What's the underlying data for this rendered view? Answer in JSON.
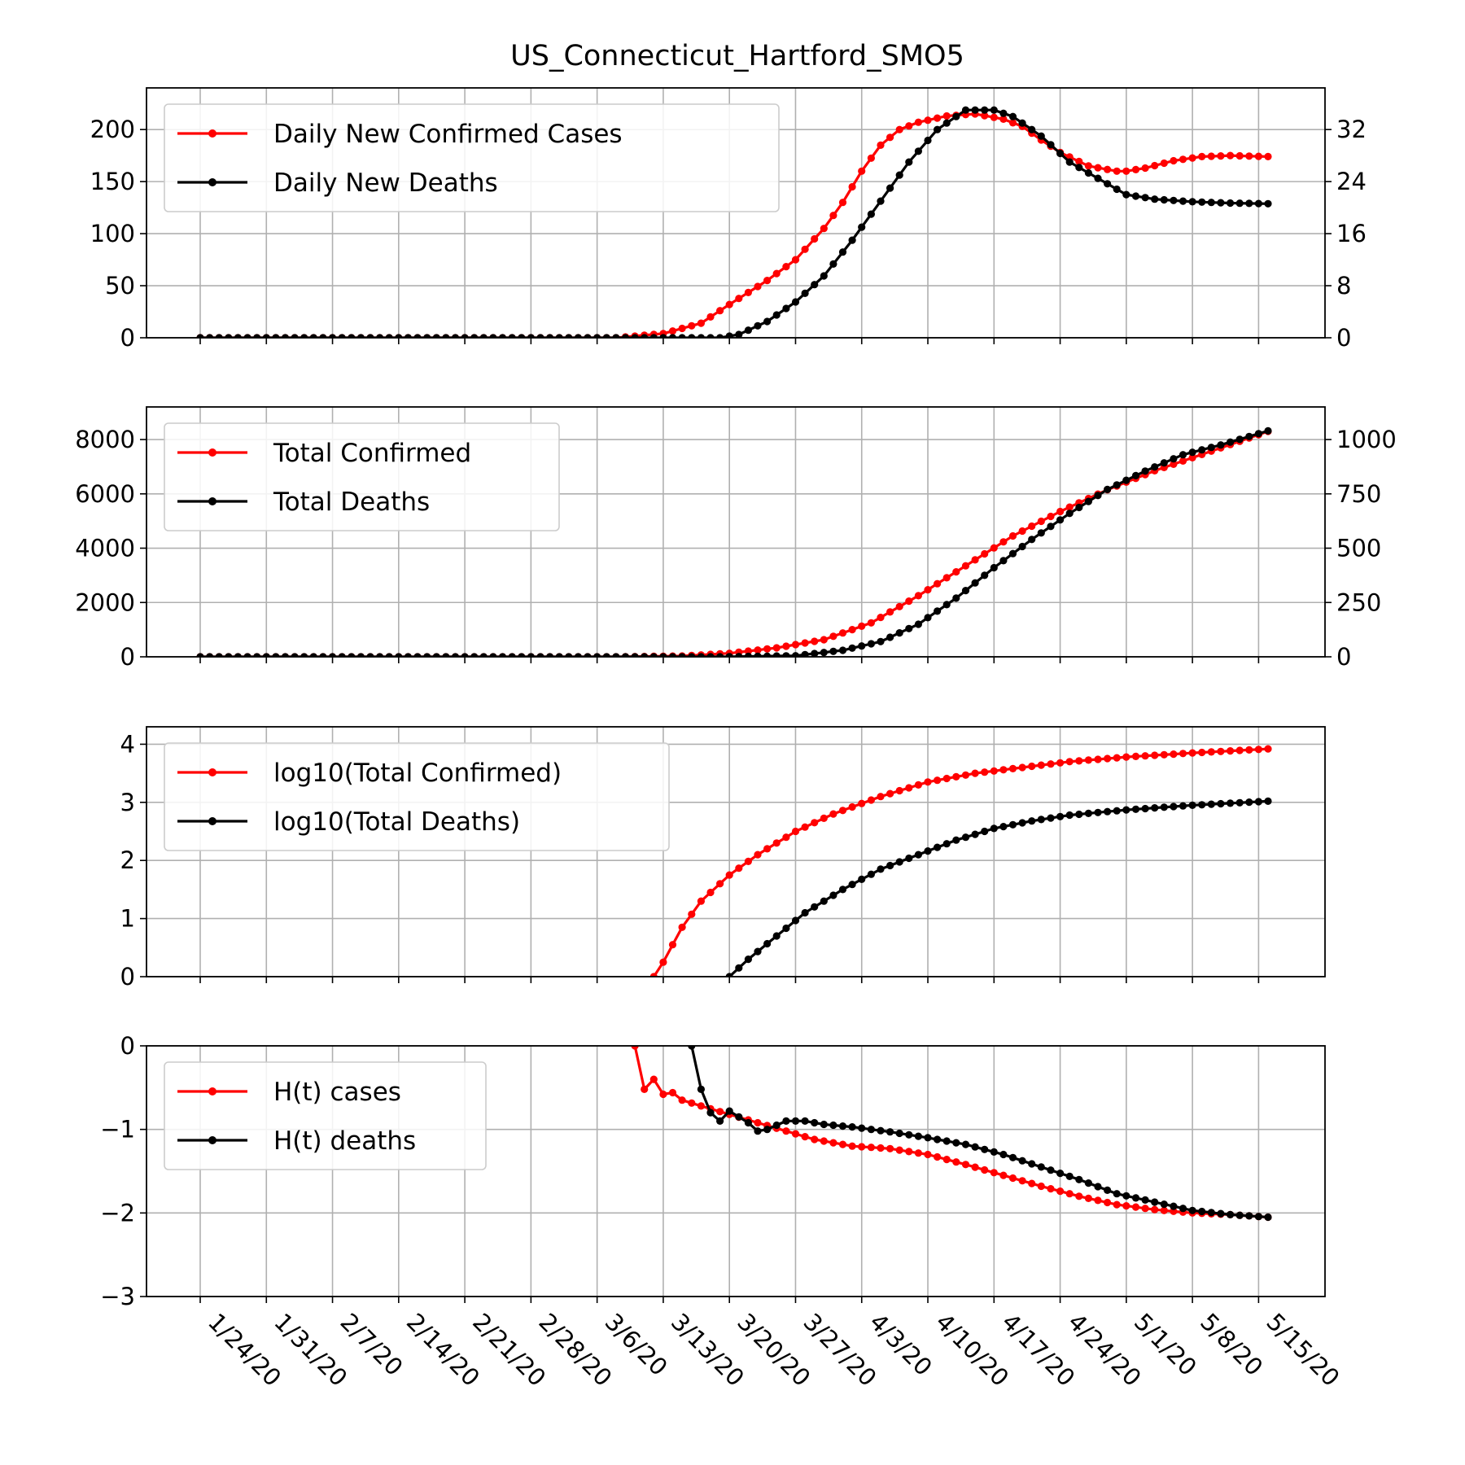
{
  "title": "US_Connecticut_Hartford_SMO5",
  "colors": {
    "cases": "#ff0000",
    "deaths": "#000000",
    "grid": "#b0b0b0"
  },
  "x_tick_labels": [
    "1/24/20",
    "1/31/20",
    "2/7/20",
    "2/14/20",
    "2/21/20",
    "2/28/20",
    "3/6/20",
    "3/13/20",
    "3/20/20",
    "3/27/20",
    "4/3/20",
    "4/10/20",
    "4/17/20",
    "4/24/20",
    "5/1/20",
    "5/8/20",
    "5/15/20"
  ],
  "chart_data": [
    {
      "type": "line",
      "x_start": "1/24/20",
      "x_end": "5/16/20",
      "legend": [
        "Daily New Confirmed Cases",
        "Daily New Deaths"
      ],
      "legend_loc": "upper left",
      "grid": true,
      "left_ticks": [
        "0",
        "50",
        "100",
        "150",
        "200"
      ],
      "right_ticks": [
        "0",
        "8",
        "16",
        "24",
        "32"
      ],
      "ylim_left": [
        0,
        240
      ],
      "ylim_right": [
        0,
        38.4
      ],
      "series": [
        {
          "name": "Daily New Confirmed Cases",
          "axis": "left",
          "x": [
            "3/8/20",
            "3/13/20",
            "3/17/20",
            "3/20/20",
            "3/24/20",
            "3/27/20",
            "3/30/20",
            "4/1/20",
            "4/3/20",
            "4/5/20",
            "4/7/20",
            "4/9/20",
            "4/12/20",
            "4/15/20",
            "4/18/20",
            "4/20/20",
            "4/22/20",
            "4/24/20",
            "4/27/20",
            "4/30/20",
            "5/1/20",
            "5/3/20",
            "5/6/20",
            "5/9/20",
            "5/12/20",
            "5/16/20"
          ],
          "values": [
            0,
            4,
            14,
            32,
            55,
            75,
            105,
            130,
            160,
            185,
            200,
            207,
            213,
            215,
            210,
            203,
            190,
            178,
            165,
            160,
            160,
            163,
            170,
            174,
            175,
            174
          ]
        },
        {
          "name": "Daily New Deaths",
          "axis": "right",
          "x": [
            "3/19/20",
            "3/21/20",
            "3/24/20",
            "3/27/20",
            "3/30/20",
            "4/2/20",
            "4/5/20",
            "4/8/20",
            "4/11/20",
            "4/14/20",
            "4/17/20",
            "4/19/20",
            "4/22/20",
            "4/25/20",
            "4/28/20",
            "5/1/20",
            "5/4/20",
            "5/8/20",
            "5/12/20",
            "5/16/20"
          ],
          "values": [
            0,
            0.5,
            2.5,
            5.5,
            9.5,
            15,
            21,
            27,
            32,
            35,
            35,
            34,
            31,
            27,
            24.5,
            22,
            21.3,
            20.9,
            20.7,
            20.6
          ]
        }
      ]
    },
    {
      "type": "line",
      "x_start": "1/24/20",
      "x_end": "5/16/20",
      "legend": [
        "Total Confirmed",
        "Total Deaths"
      ],
      "legend_loc": "upper left",
      "grid": true,
      "left_ticks": [
        "0",
        "2000",
        "4000",
        "6000",
        "8000"
      ],
      "right_ticks": [
        "0",
        "250",
        "500",
        "750",
        "1000"
      ],
      "ylim_left": [
        0,
        9200
      ],
      "ylim_right": [
        0,
        1150
      ],
      "series": [
        {
          "name": "Total Confirmed",
          "axis": "left",
          "x": [
            "3/8/20",
            "3/15/20",
            "3/20/20",
            "3/25/20",
            "3/30/20",
            "4/4/20",
            "4/9/20",
            "4/14/20",
            "4/19/20",
            "4/24/20",
            "4/29/20",
            "5/4/20",
            "5/9/20",
            "5/16/20"
          ],
          "values": [
            0,
            30,
            130,
            330,
            630,
            1250,
            2250,
            3350,
            4450,
            5350,
            6150,
            6850,
            7450,
            8300
          ]
        },
        {
          "name": "Total Deaths",
          "axis": "right",
          "x": [
            "3/19/20",
            "3/27/20",
            "4/1/20",
            "4/5/20",
            "4/9/20",
            "4/13/20",
            "4/17/20",
            "4/21/20",
            "4/25/20",
            "4/29/20",
            "5/3/20",
            "5/7/20",
            "5/11/20",
            "5/16/20"
          ],
          "values": [
            0,
            5,
            30,
            70,
            150,
            270,
            410,
            540,
            660,
            770,
            855,
            930,
            975,
            1040
          ]
        }
      ]
    },
    {
      "type": "line",
      "x_start": "1/24/20",
      "x_end": "5/16/20",
      "legend": [
        "log10(Total Confirmed)",
        "log10(Total Deaths)"
      ],
      "legend_loc": "upper left",
      "grid": true,
      "left_ticks": [
        "0",
        "1",
        "2",
        "3",
        "4"
      ],
      "ylim_left": [
        0,
        4.3
      ],
      "series": [
        {
          "name": "log10(Total Confirmed)",
          "x": [
            "3/12/20",
            "3/13/20",
            "3/15/20",
            "3/17/20",
            "3/20/20",
            "3/23/20",
            "3/27/20",
            "3/31/20",
            "4/5/20",
            "4/10/20",
            "4/15/20",
            "4/20/20",
            "4/25/20",
            "5/1/20",
            "5/8/20",
            "5/16/20"
          ],
          "values": [
            0,
            0.25,
            0.85,
            1.3,
            1.75,
            2.1,
            2.5,
            2.8,
            3.1,
            3.35,
            3.5,
            3.6,
            3.7,
            3.78,
            3.85,
            3.92
          ]
        },
        {
          "name": "log10(Total Deaths)",
          "x": [
            "3/20/20",
            "3/22/20",
            "3/25/20",
            "3/28/20",
            "4/1/20",
            "4/5/20",
            "4/9/20",
            "4/13/20",
            "4/17/20",
            "4/21/20",
            "4/25/20",
            "5/1/20",
            "5/8/20",
            "5/16/20"
          ],
          "values": [
            0,
            0.3,
            0.7,
            1.1,
            1.5,
            1.85,
            2.1,
            2.35,
            2.55,
            2.68,
            2.78,
            2.87,
            2.95,
            3.02
          ]
        }
      ]
    },
    {
      "type": "line",
      "x_start": "1/24/20",
      "x_end": "5/16/20",
      "legend": [
        "H(t) cases",
        "H(t) deaths"
      ],
      "legend_loc": "upper left",
      "grid": true,
      "left_ticks": [
        "−3",
        "−2",
        "−1",
        "0"
      ],
      "ylim_left": [
        -3,
        0
      ],
      "series": [
        {
          "name": "H(t) cases",
          "x": [
            "3/10/20",
            "3/11/20",
            "3/12/20",
            "3/13/20",
            "3/14/20",
            "3/15/20",
            "3/17/20",
            "3/20/20",
            "3/23/20",
            "3/26/20",
            "3/29/20",
            "4/2/20",
            "4/6/20",
            "4/10/20",
            "4/14/20",
            "4/18/20",
            "4/22/20",
            "4/26/20",
            "4/30/20",
            "5/4/20",
            "5/8/20",
            "5/12/20",
            "5/16/20"
          ],
          "values": [
            0,
            -0.52,
            -0.4,
            -0.58,
            -0.56,
            -0.65,
            -0.72,
            -0.82,
            -0.92,
            -1.02,
            -1.12,
            -1.2,
            -1.23,
            -1.3,
            -1.42,
            -1.55,
            -1.68,
            -1.8,
            -1.9,
            -1.96,
            -2.0,
            -2.02,
            -2.05
          ]
        },
        {
          "name": "H(t) deaths",
          "x": [
            "3/16/20",
            "3/17/20",
            "3/18/20",
            "3/19/20",
            "3/20/20",
            "3/22/20",
            "3/23/20",
            "3/24/20",
            "3/26/20",
            "3/28/20",
            "3/30/20",
            "4/2/20",
            "4/6/20",
            "4/10/20",
            "4/14/20",
            "4/18/20",
            "4/22/20",
            "4/26/20",
            "4/30/20",
            "5/4/20",
            "5/8/20",
            "5/12/20",
            "5/16/20"
          ],
          "values": [
            0,
            -0.52,
            -0.8,
            -0.9,
            -0.78,
            -0.92,
            -1.02,
            -1.0,
            -0.9,
            -0.9,
            -0.94,
            -0.97,
            -1.03,
            -1.1,
            -1.18,
            -1.3,
            -1.45,
            -1.6,
            -1.77,
            -1.87,
            -1.97,
            -2.02,
            -2.05
          ]
        }
      ]
    }
  ]
}
